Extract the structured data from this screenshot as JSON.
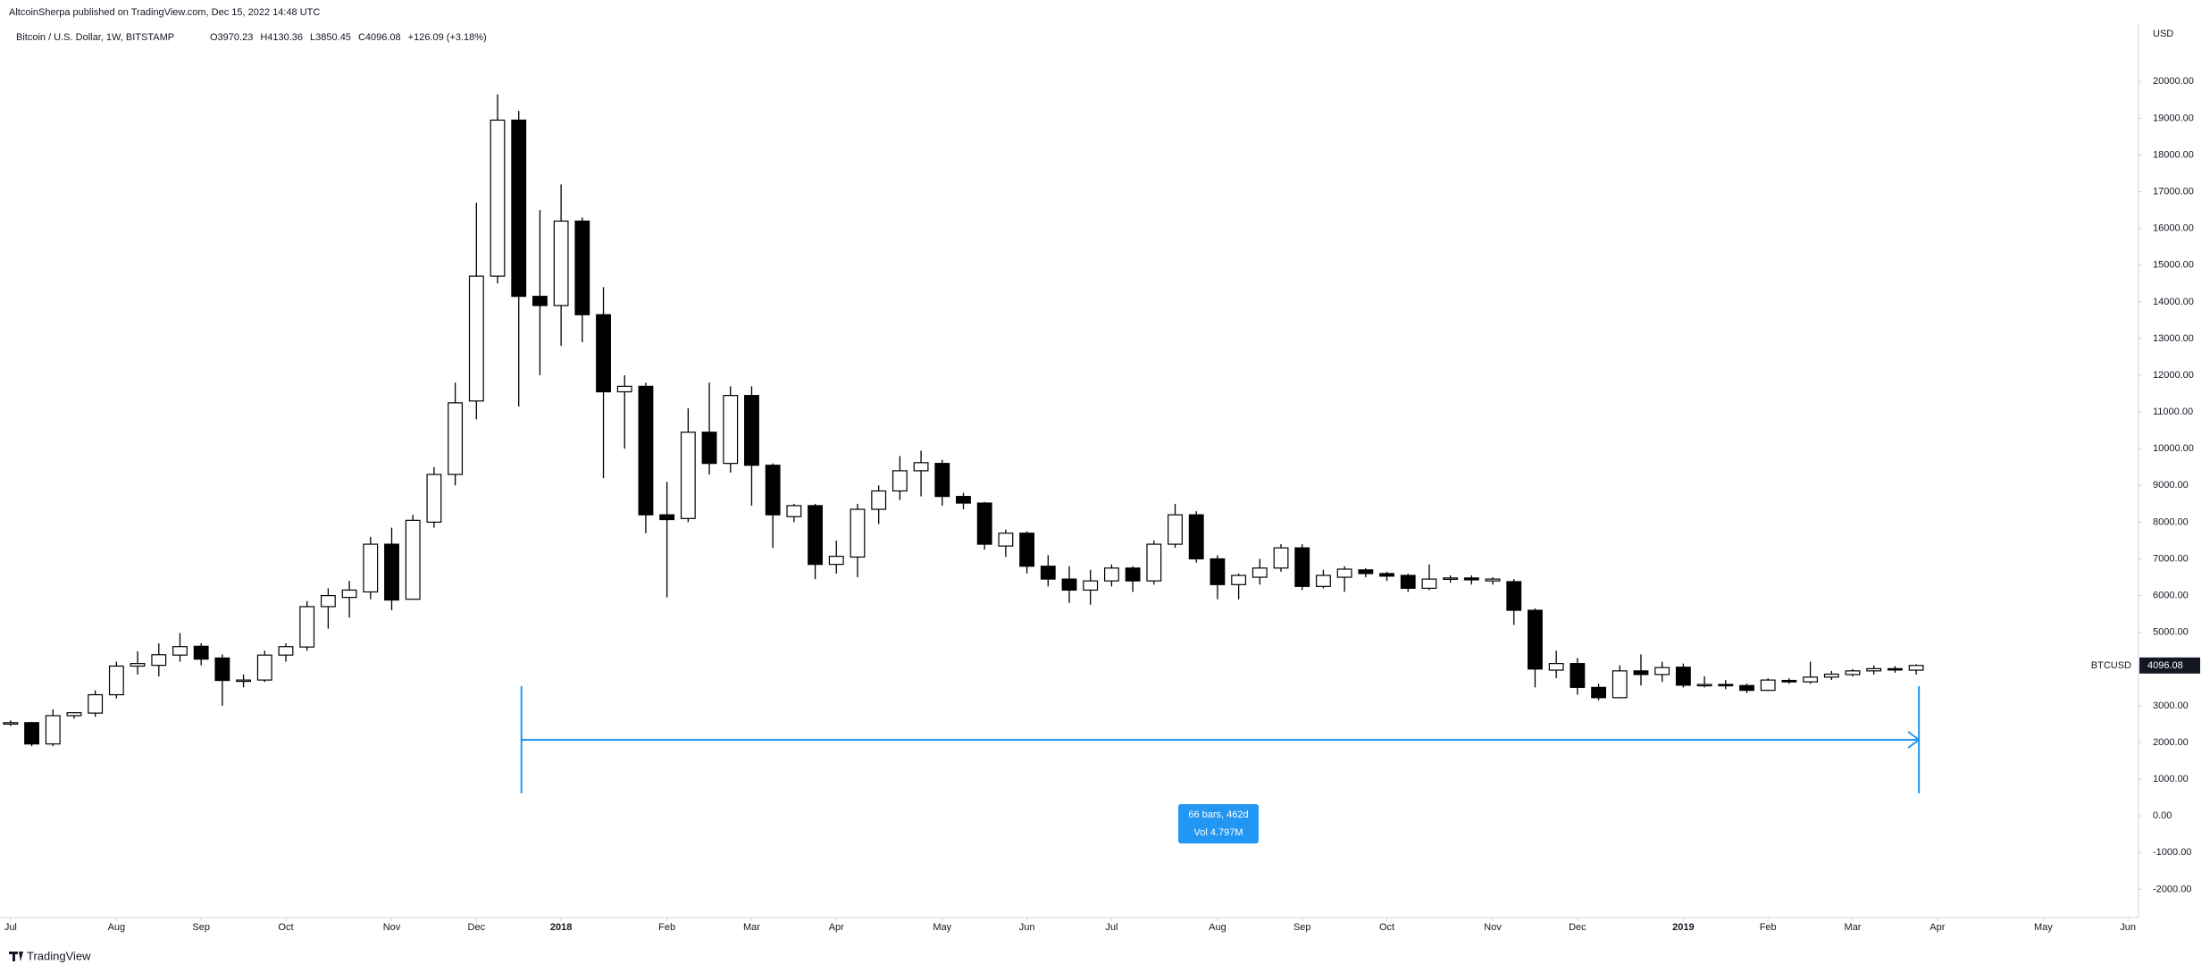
{
  "header": {
    "publisher": "AltcoinSherpa published on TradingView.com, Dec 15, 2022 14:48 UTC",
    "symbol": "Bitcoin / U.S. Dollar, 1W, BITSTAMP",
    "ohlc": [
      "O3970.23",
      "H4130.36",
      "L3850.45",
      "C4096.08",
      "+126.09 (+3.18%)"
    ]
  },
  "chart_data": {
    "type": "candlestick",
    "open": [
      2500,
      2540,
      1960,
      2730,
      2800,
      3300,
      4080,
      4100,
      4380,
      4620,
      4300,
      3690,
      3700,
      4380,
      4600,
      5700,
      5950,
      6100,
      7400,
      5900,
      8000,
      9300,
      11300,
      14700,
      18950,
      14150,
      13900,
      16200,
      13650,
      11550,
      11700,
      8200,
      8100,
      10450,
      9600,
      11450,
      9550,
      8150,
      8450,
      6850,
      7050,
      8350,
      8850,
      9400,
      9600,
      8700,
      8520,
      7350,
      7700,
      6800,
      6450,
      6150,
      6400,
      6750,
      6400,
      7400,
      8200,
      7000,
      6300,
      6500,
      6750,
      7300,
      6250,
      6500,
      6700,
      6600,
      6550,
      6200,
      6450,
      6480,
      6400,
      6380,
      5600,
      3970,
      4150,
      3500,
      3220,
      3950,
      3850,
      4050,
      3560,
      3580,
      3550,
      3420,
      3690,
      3650,
      3780,
      3850,
      3950,
      4010,
      3970.23
    ],
    "high": [
      2600,
      2560,
      2900,
      2830,
      3420,
      4200,
      4480,
      4700,
      4980,
      4700,
      4400,
      3850,
      4500,
      4700,
      5850,
      6200,
      6400,
      7600,
      7850,
      8200,
      9500,
      11800,
      16700,
      19650,
      19200,
      16500,
      17200,
      16300,
      14400,
      12000,
      11800,
      9100,
      11100,
      11800,
      11700,
      11700,
      9600,
      8500,
      8500,
      7500,
      8500,
      9000,
      9800,
      9950,
      9700,
      8800,
      8550,
      7800,
      7750,
      7100,
      6800,
      6700,
      6850,
      6800,
      7500,
      8500,
      8300,
      7100,
      6600,
      7000,
      7400,
      7400,
      6700,
      6800,
      6750,
      6650,
      6600,
      6850,
      6550,
      6550,
      6500,
      6450,
      5650,
      4500,
      4300,
      3600,
      4100,
      4400,
      4200,
      4150,
      3800,
      3700,
      3600,
      3750,
      3750,
      4200,
      3950,
      4000,
      4100,
      4080,
      4130.36
    ],
    "low": [
      2450,
      1900,
      1900,
      2650,
      2700,
      3200,
      3850,
      3800,
      4200,
      4100,
      3000,
      3500,
      3650,
      4200,
      4500,
      5100,
      5400,
      5900,
      5600,
      5900,
      7850,
      9000,
      10800,
      14500,
      11150,
      12000,
      12800,
      12900,
      9200,
      10000,
      7700,
      5950,
      8000,
      9300,
      9350,
      8450,
      7300,
      8000,
      6450,
      6600,
      6500,
      7950,
      8600,
      8700,
      8450,
      8350,
      7250,
      7050,
      6600,
      6250,
      5800,
      5750,
      6250,
      6100,
      6300,
      7300,
      6900,
      5900,
      5900,
      6300,
      6650,
      6150,
      6200,
      6100,
      6500,
      6400,
      6100,
      6150,
      6350,
      6300,
      6300,
      5200,
      3500,
      3750,
      3300,
      3150,
      3200,
      3550,
      3650,
      3500,
      3500,
      3450,
      3350,
      3400,
      3600,
      3600,
      3700,
      3800,
      3850,
      3900,
      3850.45
    ],
    "close": [
      2540,
      1960,
      2730,
      2810,
      3300,
      4080,
      4150,
      4390,
      4610,
      4270,
      3690,
      3700,
      4380,
      4610,
      5700,
      6000,
      6150,
      7400,
      5880,
      8050,
      9300,
      11250,
      14700,
      18950,
      14150,
      13900,
      16200,
      13650,
      11550,
      11700,
      8200,
      8070,
      10450,
      9600,
      11450,
      9550,
      8200,
      8450,
      6850,
      7070,
      8350,
      8850,
      9400,
      9620,
      8700,
      8520,
      7400,
      7700,
      6800,
      6450,
      6150,
      6400,
      6750,
      6400,
      7400,
      8200,
      7000,
      6300,
      6550,
      6750,
      7300,
      6250,
      6550,
      6720,
      6600,
      6530,
      6200,
      6450,
      6480,
      6430,
      6450,
      5600,
      4000,
      4150,
      3500,
      3220,
      3950,
      3850,
      4040,
      3560,
      3580,
      3550,
      3420,
      3700,
      3650,
      3780,
      3860,
      3950,
      4010,
      4000,
      4096.08
    ],
    "up_color": "#ffffff",
    "down_color": "#000000",
    "wick_color": "#000000",
    "y_unit": "USD",
    "ylim": [
      -2770,
      21540
    ],
    "yticks": [
      {
        "value": -2000,
        "label": "-2000.00"
      },
      {
        "value": -1000,
        "label": "-1000.00"
      },
      {
        "value": 0,
        "label": "0.00"
      },
      {
        "value": 1000,
        "label": "1000.00"
      },
      {
        "value": 2000,
        "label": "2000.00"
      },
      {
        "value": 3000,
        "label": "3000.00"
      },
      {
        "value": 4000,
        "label": "4000.00"
      },
      {
        "value": 5000,
        "label": "5000.00"
      },
      {
        "value": 6000,
        "label": "6000.00"
      },
      {
        "value": 7000,
        "label": "7000.00"
      },
      {
        "value": 8000,
        "label": "8000.00"
      },
      {
        "value": 9000,
        "label": "9000.00"
      },
      {
        "value": 10000,
        "label": "10000.00"
      },
      {
        "value": 11000,
        "label": "11000.00"
      },
      {
        "value": 12000,
        "label": "12000.00"
      },
      {
        "value": 13000,
        "label": "13000.00"
      },
      {
        "value": 14000,
        "label": "14000.00"
      },
      {
        "value": 15000,
        "label": "15000.00"
      },
      {
        "value": 16000,
        "label": "16000.00"
      },
      {
        "value": 17000,
        "label": "17000.00"
      },
      {
        "value": 18000,
        "label": "18000.00"
      },
      {
        "value": 19000,
        "label": "19000.00"
      },
      {
        "value": 20000,
        "label": "20000.00"
      }
    ],
    "xlim": [
      -0.5,
      100.5
    ],
    "xticks": [
      {
        "value": 0,
        "label": "Jul"
      },
      {
        "value": 5,
        "label": "Aug"
      },
      {
        "value": 9,
        "label": "Sep"
      },
      {
        "value": 13,
        "label": "Oct"
      },
      {
        "value": 18,
        "label": "Nov"
      },
      {
        "value": 22,
        "label": "Dec"
      },
      {
        "value": 26,
        "label": "2018"
      },
      {
        "value": 31,
        "label": "Feb"
      },
      {
        "value": 35,
        "label": "Mar"
      },
      {
        "value": 39,
        "label": "Apr"
      },
      {
        "value": 44,
        "label": "May"
      },
      {
        "value": 48,
        "label": "Jun"
      },
      {
        "value": 52,
        "label": "Jul"
      },
      {
        "value": 57,
        "label": "Aug"
      },
      {
        "value": 61,
        "label": "Sep"
      },
      {
        "value": 65,
        "label": "Oct"
      },
      {
        "value": 70,
        "label": "Nov"
      },
      {
        "value": 74,
        "label": "Dec"
      },
      {
        "value": 79,
        "label": "2019"
      },
      {
        "value": 83,
        "label": "Feb"
      },
      {
        "value": 87,
        "label": "Mar"
      },
      {
        "value": 91,
        "label": "Apr"
      },
      {
        "value": 96,
        "label": "May"
      },
      {
        "value": 100,
        "label": "Jun"
      }
    ],
    "symbol_label": "BTCUSD",
    "last_price_label": "4096.08",
    "measure_labels": [
      "66 bars, 462d",
      "Vol 4.797M"
    ]
  },
  "footer": "TradingView"
}
